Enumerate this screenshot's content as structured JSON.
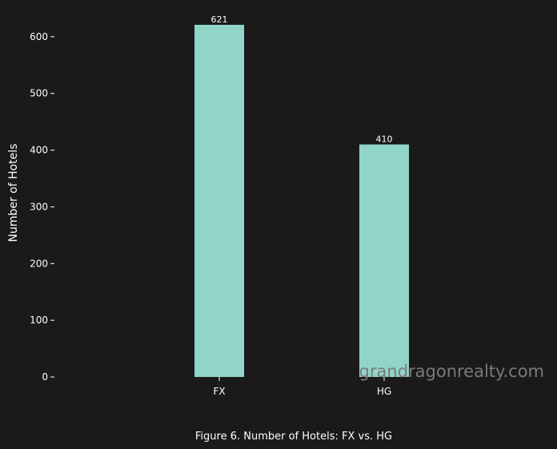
{
  "chart_data": {
    "type": "bar",
    "categories": [
      "FX",
      "HG"
    ],
    "values": [
      621,
      410
    ],
    "ylabel": "Number of Hotels",
    "xlabel": "",
    "ylim": [
      0,
      621
    ],
    "yticks": [
      0,
      100,
      200,
      300,
      400,
      500,
      600
    ],
    "grid": false,
    "bar_color": "#90d5c8",
    "background": "#1a1a1a",
    "value_labels": true
  },
  "caption": "Figure 6. Number of Hotels: FX vs. HG",
  "watermark": "grandragonrealty.com"
}
